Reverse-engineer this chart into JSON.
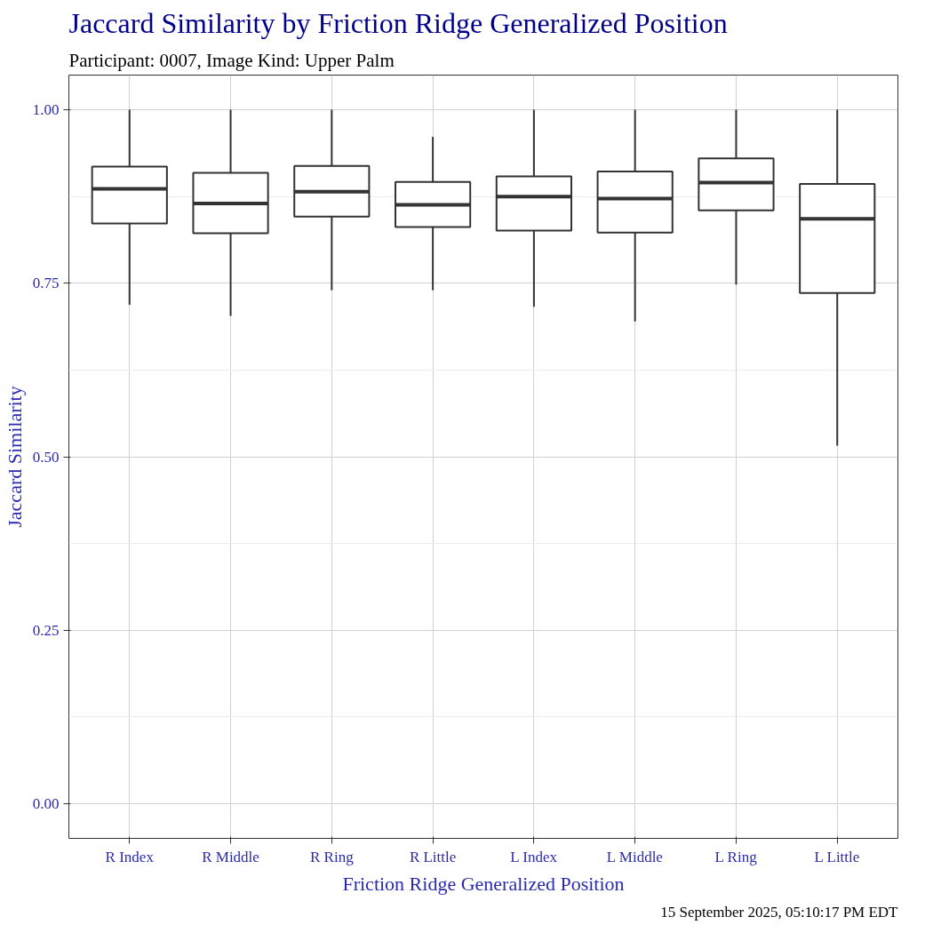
{
  "chart_data": {
    "type": "box",
    "title": "Jaccard Similarity by Friction Ridge Generalized Position",
    "subtitle": "Participant: 0007, Image Kind: Upper Palm",
    "xlabel": "Friction Ridge Generalized Position",
    "ylabel": "Jaccard Similarity",
    "categories": [
      "R Index",
      "R Middle",
      "R Ring",
      "R Little",
      "L Index",
      "L Middle",
      "L Ring",
      "L Little"
    ],
    "boxes": [
      {
        "low": 0.719,
        "q1": 0.836,
        "median": 0.886,
        "q3": 0.918,
        "high": 1.0
      },
      {
        "low": 0.703,
        "q1": 0.822,
        "median": 0.865,
        "q3": 0.909,
        "high": 1.0
      },
      {
        "low": 0.74,
        "q1": 0.846,
        "median": 0.882,
        "q3": 0.919,
        "high": 1.0
      },
      {
        "low": 0.74,
        "q1": 0.831,
        "median": 0.863,
        "q3": 0.896,
        "high": 0.961
      },
      {
        "low": 0.716,
        "q1": 0.826,
        "median": 0.875,
        "q3": 0.904,
        "high": 1.0
      },
      {
        "low": 0.695,
        "q1": 0.823,
        "median": 0.872,
        "q3": 0.911,
        "high": 1.0
      },
      {
        "low": 0.748,
        "q1": 0.855,
        "median": 0.895,
        "q3": 0.93,
        "high": 1.0
      },
      {
        "low": 0.516,
        "q1": 0.736,
        "median": 0.843,
        "q3": 0.893,
        "high": 1.0
      }
    ],
    "color": "#333333",
    "ylim": [
      -0.05,
      1.05
    ],
    "yticks": [
      {
        "value": 0,
        "label": "0.00"
      },
      {
        "value": 0.25,
        "label": "0.25"
      },
      {
        "value": 0.5,
        "label": "0.50"
      },
      {
        "value": 0.75,
        "label": "0.75"
      },
      {
        "value": 1,
        "label": "1.00"
      }
    ],
    "grid": true,
    "annotations": [
      "15 September 2025, 05:10:17 PM EDT"
    ]
  }
}
